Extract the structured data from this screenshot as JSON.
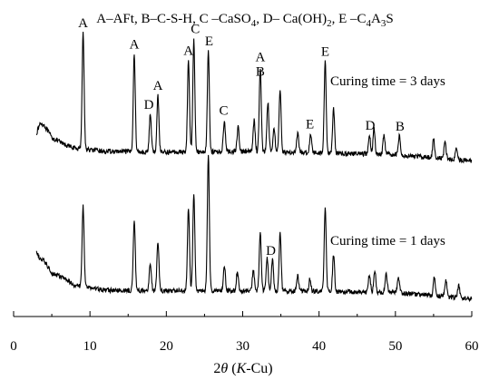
{
  "chart_data": {
    "type": "line",
    "title": "",
    "legend_text": [
      "A–AFt, B–C-S-H, C –CaSO",
      "4",
      ", D– Ca(OH)",
      "2",
      ", E –C",
      "4",
      "A",
      "3",
      "S"
    ],
    "xlabel_parts": [
      "2",
      "θ",
      " (",
      "K",
      "-Cu)"
    ],
    "xlim": [
      0,
      60
    ],
    "x_ticks": [
      0,
      10,
      20,
      30,
      40,
      50,
      60
    ],
    "x_tick_labels": [
      "0",
      "10",
      "20",
      "30",
      "40",
      "50",
      "60"
    ],
    "y_ticks_shown": false,
    "series": [
      {
        "name": "Curing time = 3 days",
        "annotation": "Curing time = 3 days",
        "baseline": 0.34,
        "noise": 0.015,
        "background": [
          [
            3.0,
            0.62
          ],
          [
            3.5,
            0.78
          ],
          [
            4.0,
            0.75
          ],
          [
            5.0,
            0.55
          ],
          [
            6.5,
            0.45
          ],
          [
            8.0,
            0.38
          ],
          [
            12.0,
            0.33
          ],
          [
            20.0,
            0.32
          ],
          [
            30.0,
            0.33
          ],
          [
            40.0,
            0.31
          ],
          [
            50.0,
            0.28
          ],
          [
            60.0,
            0.18
          ]
        ],
        "peaks": [
          [
            9.1,
            1.85
          ],
          [
            15.8,
            1.55
          ],
          [
            17.9,
            0.6
          ],
          [
            18.9,
            0.9
          ],
          [
            22.9,
            1.45
          ],
          [
            23.6,
            1.8
          ],
          [
            25.5,
            1.6
          ],
          [
            27.6,
            0.5
          ],
          [
            29.4,
            0.4
          ],
          [
            31.5,
            0.5
          ],
          [
            32.3,
            1.35
          ],
          [
            33.3,
            0.8
          ],
          [
            34.1,
            0.4
          ],
          [
            34.9,
            1.0
          ],
          [
            37.2,
            0.3
          ],
          [
            38.9,
            0.3
          ],
          [
            40.8,
            1.45
          ],
          [
            41.9,
            0.7
          ],
          [
            46.6,
            0.3
          ],
          [
            47.2,
            0.4
          ],
          [
            48.5,
            0.3
          ],
          [
            50.5,
            0.3
          ],
          [
            55.0,
            0.3
          ],
          [
            56.5,
            0.28
          ],
          [
            58.0,
            0.2
          ]
        ],
        "peak_labels": [
          {
            "text": "A",
            "x": 9.1
          },
          {
            "text": "A",
            "x": 15.8
          },
          {
            "text": "D",
            "x": 17.7
          },
          {
            "text": "A",
            "x": 18.9
          },
          {
            "text": "A",
            "x": 22.9
          },
          {
            "text": "C",
            "x": 23.8
          },
          {
            "text": "E",
            "x": 25.6
          },
          {
            "text": "C",
            "x": 27.5
          },
          {
            "text": "A",
            "x": 32.3
          },
          {
            "text": "B",
            "x": 32.3
          },
          {
            "text": "E",
            "x": 38.8
          },
          {
            "text": "E",
            "x": 40.8
          },
          {
            "text": "D",
            "x": 46.7
          },
          {
            "text": "B",
            "x": 50.6
          }
        ]
      },
      {
        "name": "Curing time = 1 days",
        "annotation": "Curing time = 1 days",
        "baseline": 0.2,
        "noise": 0.015,
        "background": [
          [
            3.0,
            0.82
          ],
          [
            3.5,
            0.72
          ],
          [
            4.0,
            0.7
          ],
          [
            5.0,
            0.5
          ],
          [
            6.5,
            0.42
          ],
          [
            8.0,
            0.3
          ],
          [
            12.0,
            0.22
          ],
          [
            20.0,
            0.21
          ],
          [
            30.0,
            0.21
          ],
          [
            40.0,
            0.2
          ],
          [
            50.0,
            0.18
          ],
          [
            60.0,
            0.08
          ]
        ],
        "peaks": [
          [
            9.1,
            1.3
          ],
          [
            15.8,
            1.15
          ],
          [
            17.9,
            0.45
          ],
          [
            18.9,
            0.8
          ],
          [
            22.9,
            1.35
          ],
          [
            23.6,
            1.55
          ],
          [
            25.5,
            2.2
          ],
          [
            27.6,
            0.4
          ],
          [
            29.3,
            0.3
          ],
          [
            31.4,
            0.35
          ],
          [
            32.3,
            0.95
          ],
          [
            33.2,
            0.55
          ],
          [
            33.9,
            0.5
          ],
          [
            34.9,
            0.95
          ],
          [
            37.2,
            0.25
          ],
          [
            38.8,
            0.2
          ],
          [
            40.8,
            1.35
          ],
          [
            41.9,
            0.6
          ],
          [
            46.6,
            0.3
          ],
          [
            47.3,
            0.35
          ],
          [
            48.8,
            0.3
          ],
          [
            50.4,
            0.25
          ],
          [
            55.1,
            0.3
          ],
          [
            56.6,
            0.28
          ],
          [
            58.3,
            0.2
          ]
        ],
        "peak_labels": [
          {
            "text": "D",
            "x": 33.7
          }
        ]
      }
    ]
  }
}
